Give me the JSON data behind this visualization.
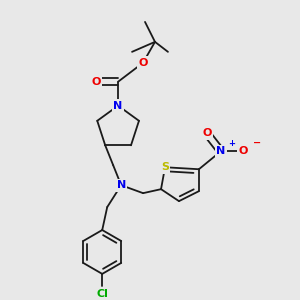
{
  "bg_color": "#e8e8e8",
  "bond_color": "#1a1a1a",
  "atom_colors": {
    "N": "#0000ee",
    "O": "#ee0000",
    "S": "#bbbb00",
    "Cl": "#00aa00",
    "C": "#1a1a1a"
  },
  "figsize": [
    3.0,
    3.0
  ],
  "dpi": 100
}
